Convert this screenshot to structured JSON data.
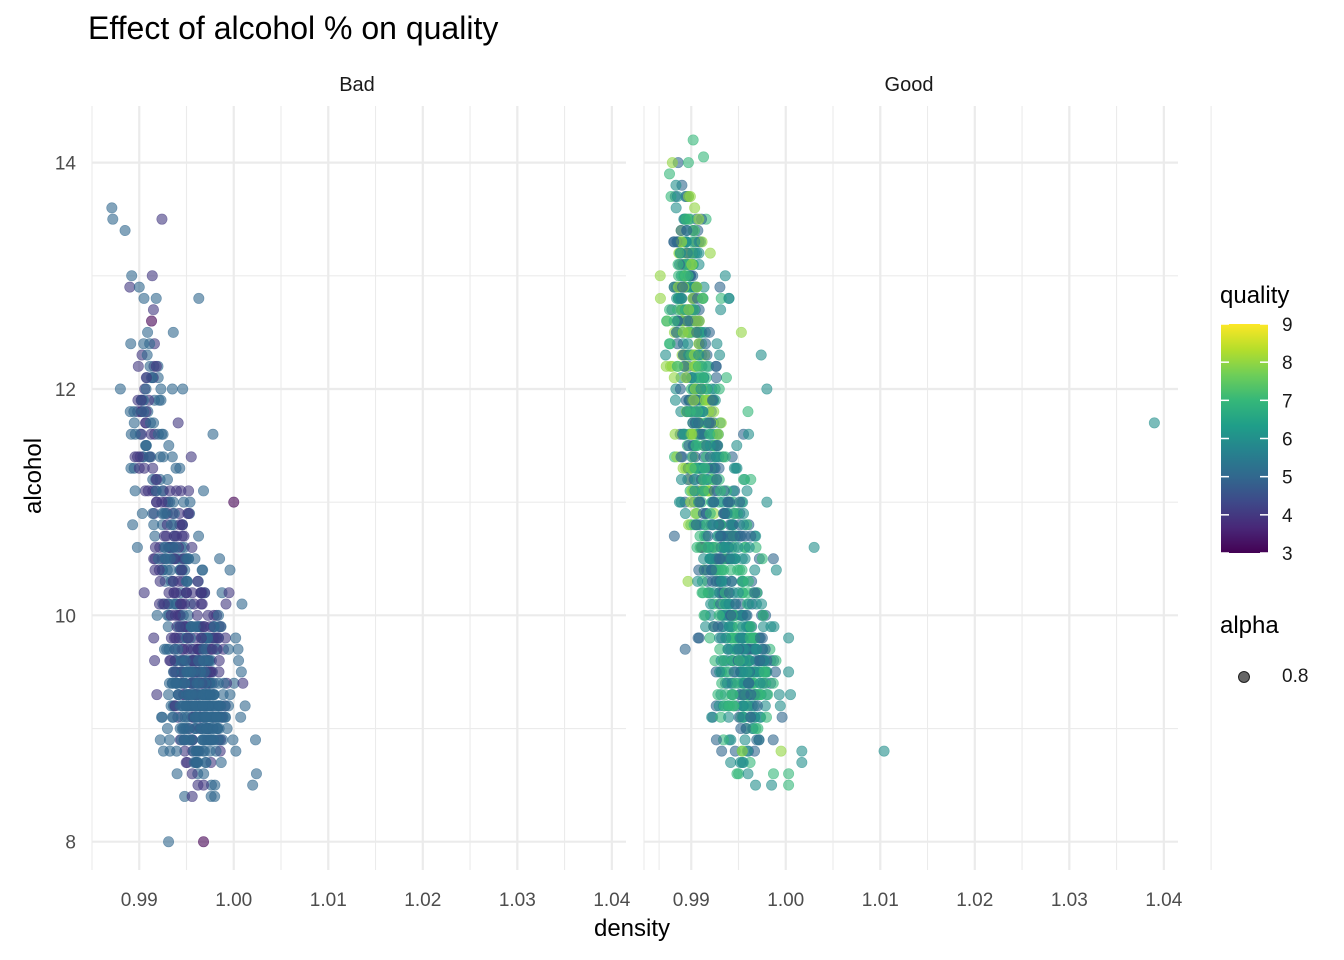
{
  "chart_data": {
    "type": "scatter",
    "title": "Effect of alcohol % on quality",
    "xlabel": "density",
    "ylabel": "alcohol",
    "xlim": [
      0.985,
      1.0415
    ],
    "ylim": [
      7.75,
      14.5
    ],
    "x_ticks": [
      "0.99",
      "1.00",
      "1.01",
      "1.02",
      "1.03",
      "1.04"
    ],
    "x_tick_values": [
      0.99,
      1.0,
      1.01,
      1.02,
      1.03,
      1.04
    ],
    "y_ticks": [
      "8",
      "10",
      "12",
      "14"
    ],
    "y_tick_values": [
      8,
      10,
      12,
      14
    ],
    "grid": true,
    "facets": [
      {
        "label": "Bad",
        "points": [
          {
            "x": 0.9871,
            "y": 13.6,
            "q": 5
          },
          {
            "x": 0.9872,
            "y": 13.5,
            "q": 5
          },
          {
            "x": 0.9885,
            "y": 13.4,
            "q": 5
          },
          {
            "x": 0.9924,
            "y": 13.5,
            "q": 4
          },
          {
            "x": 0.9892,
            "y": 13.0,
            "q": 5
          },
          {
            "x": 0.989,
            "y": 12.9,
            "q": 4
          },
          {
            "x": 0.99,
            "y": 12.9,
            "q": 5
          },
          {
            "x": 0.9963,
            "y": 12.8,
            "q": 5
          },
          {
            "x": 0.9905,
            "y": 12.8,
            "q": 5
          },
          {
            "x": 0.9913,
            "y": 12.6,
            "q": 3
          },
          {
            "x": 0.9915,
            "y": 12.7,
            "q": 4
          },
          {
            "x": 0.9936,
            "y": 12.5,
            "q": 5
          },
          {
            "x": 0.9891,
            "y": 12.4,
            "q": 5
          },
          {
            "x": 0.9911,
            "y": 12.4,
            "q": 5
          },
          {
            "x": 0.9899,
            "y": 12.2,
            "q": 4
          },
          {
            "x": 0.988,
            "y": 12.0,
            "q": 5
          },
          {
            "x": 0.9935,
            "y": 12.0,
            "q": 5
          },
          {
            "x": 0.9946,
            "y": 12.0,
            "q": 5
          },
          {
            "x": 0.9978,
            "y": 11.6,
            "q": 5
          },
          {
            "x": 0.9955,
            "y": 11.4,
            "q": 4
          },
          {
            "x": 0.9968,
            "y": 11.1,
            "q": 5
          },
          {
            "x": 1.0,
            "y": 11.0,
            "q": 3
          },
          {
            "x": 0.9893,
            "y": 10.8,
            "q": 5
          },
          {
            "x": 0.9898,
            "y": 10.6,
            "q": 5
          },
          {
            "x": 0.9985,
            "y": 10.5,
            "q": 5
          },
          {
            "x": 0.9996,
            "y": 10.4,
            "q": 5
          },
          {
            "x": 0.9995,
            "y": 10.2,
            "q": 4
          },
          {
            "x": 1.0002,
            "y": 9.8,
            "q": 5
          },
          {
            "x": 1.0008,
            "y": 9.5,
            "q": 5
          },
          {
            "x": 1.0012,
            "y": 9.2,
            "q": 5
          },
          {
            "x": 1.0023,
            "y": 8.9,
            "q": 5
          },
          {
            "x": 1.0024,
            "y": 8.6,
            "q": 5
          },
          {
            "x": 1.002,
            "y": 8.5,
            "q": 5
          },
          {
            "x": 0.9956,
            "y": 8.6,
            "q": 4
          },
          {
            "x": 0.9948,
            "y": 8.4,
            "q": 5
          },
          {
            "x": 0.9956,
            "y": 8.4,
            "q": 4
          },
          {
            "x": 0.9968,
            "y": 8.5,
            "q": 4
          },
          {
            "x": 0.9931,
            "y": 8.0,
            "q": 5
          },
          {
            "x": 0.9968,
            "y": 8.0,
            "q": 3
          },
          {
            "x": 0.994,
            "y": 8.6,
            "q": 5
          }
        ],
        "clusters": [
          {
            "x_mean": 0.991,
            "x_sd": 0.0009,
            "y_mean": 11.7,
            "y_sd": 0.45,
            "n": 80,
            "q_range": [
              4,
              5
            ]
          },
          {
            "x_mean": 0.9935,
            "x_sd": 0.0012,
            "y_mean": 10.6,
            "y_sd": 0.45,
            "n": 140,
            "q_range": [
              4,
              5
            ]
          },
          {
            "x_mean": 0.9962,
            "x_sd": 0.0015,
            "y_mean": 9.5,
            "y_sd": 0.35,
            "n": 320,
            "q_range": [
              4,
              5
            ]
          },
          {
            "x_mean": 0.9965,
            "x_sd": 0.0016,
            "y_mean": 9.1,
            "y_sd": 0.25,
            "n": 160,
            "q_range": [
              5,
              5
            ]
          }
        ]
      },
      {
        "label": "Good",
        "points": [
          {
            "x": 0.9902,
            "y": 14.2,
            "q": 7
          },
          {
            "x": 0.9913,
            "y": 14.05,
            "q": 7
          },
          {
            "x": 0.988,
            "y": 14.0,
            "q": 8
          },
          {
            "x": 0.9897,
            "y": 14.0,
            "q": 7
          },
          {
            "x": 0.9877,
            "y": 13.9,
            "q": 7
          },
          {
            "x": 0.9884,
            "y": 13.6,
            "q": 6
          },
          {
            "x": 0.9936,
            "y": 13.0,
            "q": 6
          },
          {
            "x": 0.994,
            "y": 12.8,
            "q": 6
          },
          {
            "x": 0.9953,
            "y": 12.5,
            "q": 8
          },
          {
            "x": 0.9974,
            "y": 12.3,
            "q": 6
          },
          {
            "x": 0.998,
            "y": 12.0,
            "q": 6
          },
          {
            "x": 0.996,
            "y": 11.8,
            "q": 7
          },
          {
            "x": 0.998,
            "y": 11.0,
            "q": 6
          },
          {
            "x": 0.9963,
            "y": 11.2,
            "q": 7
          },
          {
            "x": 1.003,
            "y": 10.6,
            "q": 6
          },
          {
            "x": 0.999,
            "y": 10.4,
            "q": 6
          },
          {
            "x": 1.0003,
            "y": 9.8,
            "q": 6
          },
          {
            "x": 1.0003,
            "y": 9.5,
            "q": 6
          },
          {
            "x": 1.0005,
            "y": 9.3,
            "q": 6
          },
          {
            "x": 1.0017,
            "y": 8.8,
            "q": 6
          },
          {
            "x": 1.0017,
            "y": 8.7,
            "q": 6
          },
          {
            "x": 1.0003,
            "y": 8.6,
            "q": 7
          },
          {
            "x": 1.0003,
            "y": 8.5,
            "q": 7
          },
          {
            "x": 0.9995,
            "y": 8.8,
            "q": 8
          },
          {
            "x": 0.9954,
            "y": 8.8,
            "q": 8
          },
          {
            "x": 0.996,
            "y": 8.6,
            "q": 6
          },
          {
            "x": 0.9968,
            "y": 8.5,
            "q": 6
          },
          {
            "x": 0.9985,
            "y": 8.5,
            "q": 6
          },
          {
            "x": 0.9987,
            "y": 8.6,
            "q": 7
          },
          {
            "x": 0.993,
            "y": 9.5,
            "q": 6
          },
          {
            "x": 1.0104,
            "y": 8.8,
            "q": 6
          },
          {
            "x": 1.039,
            "y": 11.7,
            "q": 6
          }
        ],
        "clusters": [
          {
            "x_mean": 0.9895,
            "x_sd": 0.001,
            "y_mean": 12.9,
            "y_sd": 0.5,
            "n": 220,
            "q_range": [
              5,
              8
            ]
          },
          {
            "x_mean": 0.991,
            "x_sd": 0.0012,
            "y_mean": 11.6,
            "y_sd": 0.5,
            "n": 260,
            "q_range": [
              5,
              8
            ]
          },
          {
            "x_mean": 0.9935,
            "x_sd": 0.0014,
            "y_mean": 10.5,
            "y_sd": 0.45,
            "n": 260,
            "q_range": [
              5,
              7
            ]
          },
          {
            "x_mean": 0.996,
            "x_sd": 0.0015,
            "y_mean": 9.5,
            "y_sd": 0.35,
            "n": 280,
            "q_range": [
              5,
              7
            ]
          }
        ]
      }
    ],
    "color_legend": {
      "title": "quality",
      "ticks": [
        "3",
        "4",
        "5",
        "6",
        "7",
        "8",
        "9"
      ],
      "min": 3,
      "max": 9,
      "palette": [
        "#440154",
        "#482878",
        "#3e4989",
        "#31688e",
        "#26828e",
        "#1f9e89",
        "#35b779",
        "#6ece58",
        "#b5de2b",
        "#fde725"
      ]
    },
    "alpha_legend": {
      "title": "alpha",
      "label": "0.8"
    },
    "point_alpha": 0.6,
    "grid_color": "#ebebeb"
  }
}
